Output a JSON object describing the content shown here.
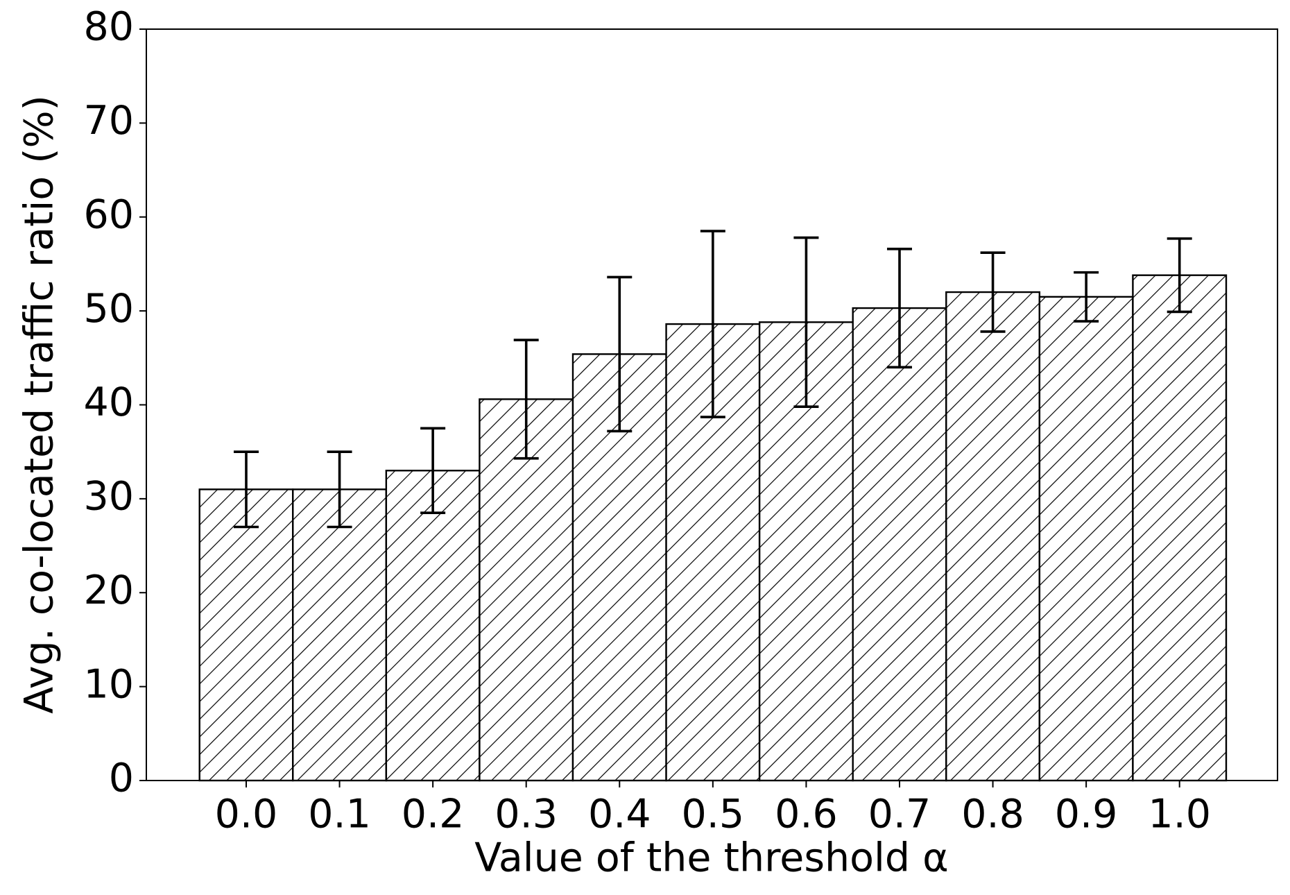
{
  "chart_data": {
    "type": "bar",
    "x_label": "Value of the threshold α",
    "y_label": "Avg. co-located traffic ratio (%)",
    "categories": [
      "0.0",
      "0.1",
      "0.2",
      "0.3",
      "0.4",
      "0.5",
      "0.6",
      "0.7",
      "0.8",
      "0.9",
      "1.0"
    ],
    "values": [
      31,
      31,
      33,
      40.6,
      45.4,
      48.6,
      48.8,
      50.3,
      52,
      51.5,
      53.8
    ],
    "errors": [
      4,
      4,
      4.5,
      6.3,
      8.2,
      9.9,
      9,
      6.3,
      4.2,
      2.6,
      3.9
    ],
    "color": "#ffffff",
    "hatch_color": "#000000",
    "ylim": [
      0,
      80
    ],
    "yticks": [
      0,
      10,
      20,
      30,
      40,
      50,
      60,
      70,
      80
    ]
  }
}
